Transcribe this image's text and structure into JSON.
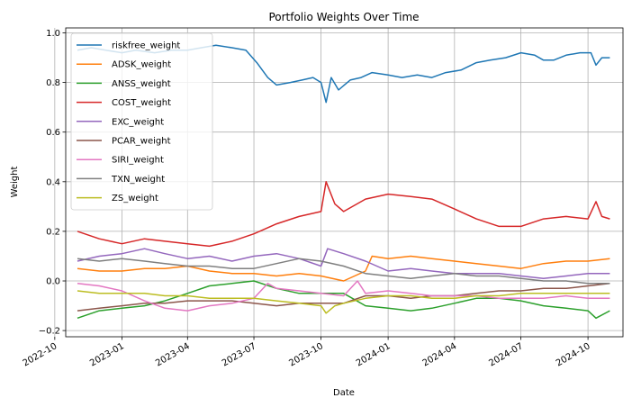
{
  "chart_data": {
    "type": "line",
    "title": "Portfolio Weights Over Time",
    "xlabel": "Date",
    "ylabel": "Weight",
    "xlim": [
      "2022-10-16",
      "2024-11-18"
    ],
    "ylim": [
      -0.225,
      1.02
    ],
    "grid": true,
    "legend_position": "top-left",
    "x_ticks": [
      "2022-10-01",
      "2023-01-01",
      "2023-04-01",
      "2023-07-01",
      "2023-10-01",
      "2024-01-01",
      "2024-04-01",
      "2024-07-01",
      "2024-10-01"
    ],
    "x_tick_labels": [
      "2022-10",
      "2023-01",
      "2023-04",
      "2023-07",
      "2023-10",
      "2024-01",
      "2024-04",
      "2024-07",
      "2024-10"
    ],
    "y_ticks": [
      -0.2,
      0.0,
      0.2,
      0.4,
      0.6,
      0.8,
      1.0
    ],
    "y_tick_labels": [
      "−0.2",
      "0.0",
      "0.2",
      "0.4",
      "0.6",
      "0.8",
      "1.0"
    ],
    "series": [
      {
        "name": "riskfree_weight",
        "color": "#1f77b4",
        "points": [
          [
            "2022-11-01",
            0.93
          ],
          [
            "2022-11-20",
            0.94
          ],
          [
            "2022-12-10",
            0.93
          ],
          [
            "2023-01-01",
            0.92
          ],
          [
            "2023-01-20",
            0.93
          ],
          [
            "2023-02-15",
            0.92
          ],
          [
            "2023-03-10",
            0.93
          ],
          [
            "2023-04-01",
            0.93
          ],
          [
            "2023-04-20",
            0.94
          ],
          [
            "2023-05-10",
            0.95
          ],
          [
            "2023-06-01",
            0.94
          ],
          [
            "2023-06-20",
            0.93
          ],
          [
            "2023-07-05",
            0.88
          ],
          [
            "2023-07-20",
            0.82
          ],
          [
            "2023-08-01",
            0.79
          ],
          [
            "2023-08-20",
            0.8
          ],
          [
            "2023-09-05",
            0.81
          ],
          [
            "2023-09-20",
            0.82
          ],
          [
            "2023-10-01",
            0.8
          ],
          [
            "2023-10-08",
            0.72
          ],
          [
            "2023-10-15",
            0.82
          ],
          [
            "2023-10-25",
            0.77
          ],
          [
            "2023-11-10",
            0.81
          ],
          [
            "2023-11-25",
            0.82
          ],
          [
            "2023-12-10",
            0.84
          ],
          [
            "2024-01-01",
            0.83
          ],
          [
            "2024-01-20",
            0.82
          ],
          [
            "2024-02-10",
            0.83
          ],
          [
            "2024-03-01",
            0.82
          ],
          [
            "2024-03-20",
            0.84
          ],
          [
            "2024-04-10",
            0.85
          ],
          [
            "2024-05-01",
            0.88
          ],
          [
            "2024-05-20",
            0.89
          ],
          [
            "2024-06-10",
            0.9
          ],
          [
            "2024-07-01",
            0.92
          ],
          [
            "2024-07-20",
            0.91
          ],
          [
            "2024-08-01",
            0.89
          ],
          [
            "2024-08-15",
            0.89
          ],
          [
            "2024-09-01",
            0.91
          ],
          [
            "2024-09-20",
            0.92
          ],
          [
            "2024-10-05",
            0.92
          ],
          [
            "2024-10-12",
            0.87
          ],
          [
            "2024-10-20",
            0.9
          ],
          [
            "2024-10-31",
            0.9
          ]
        ]
      },
      {
        "name": "ADSK_weight",
        "color": "#ff7f0e",
        "points": [
          [
            "2022-11-01",
            0.05
          ],
          [
            "2022-12-01",
            0.04
          ],
          [
            "2023-01-01",
            0.04
          ],
          [
            "2023-02-01",
            0.05
          ],
          [
            "2023-03-01",
            0.05
          ],
          [
            "2023-04-01",
            0.06
          ],
          [
            "2023-05-01",
            0.04
          ],
          [
            "2023-06-01",
            0.03
          ],
          [
            "2023-07-01",
            0.03
          ],
          [
            "2023-08-01",
            0.02
          ],
          [
            "2023-09-01",
            0.03
          ],
          [
            "2023-10-01",
            0.02
          ],
          [
            "2023-11-01",
            0.0
          ],
          [
            "2023-12-01",
            0.04
          ],
          [
            "2023-12-10",
            0.1
          ],
          [
            "2024-01-01",
            0.09
          ],
          [
            "2024-02-01",
            0.1
          ],
          [
            "2024-03-01",
            0.09
          ],
          [
            "2024-04-01",
            0.08
          ],
          [
            "2024-05-01",
            0.07
          ],
          [
            "2024-06-01",
            0.06
          ],
          [
            "2024-07-01",
            0.05
          ],
          [
            "2024-08-01",
            0.07
          ],
          [
            "2024-09-01",
            0.08
          ],
          [
            "2024-10-01",
            0.08
          ],
          [
            "2024-10-31",
            0.09
          ]
        ]
      },
      {
        "name": "ANSS_weight",
        "color": "#2ca02c",
        "points": [
          [
            "2022-11-01",
            -0.15
          ],
          [
            "2022-12-01",
            -0.12
          ],
          [
            "2023-01-01",
            -0.11
          ],
          [
            "2023-02-01",
            -0.1
          ],
          [
            "2023-03-01",
            -0.08
          ],
          [
            "2023-04-01",
            -0.05
          ],
          [
            "2023-05-01",
            -0.02
          ],
          [
            "2023-06-01",
            -0.01
          ],
          [
            "2023-07-01",
            0.0
          ],
          [
            "2023-08-01",
            -0.03
          ],
          [
            "2023-09-01",
            -0.05
          ],
          [
            "2023-10-01",
            -0.05
          ],
          [
            "2023-11-01",
            -0.05
          ],
          [
            "2023-12-01",
            -0.1
          ],
          [
            "2024-01-01",
            -0.11
          ],
          [
            "2024-02-01",
            -0.12
          ],
          [
            "2024-03-01",
            -0.11
          ],
          [
            "2024-04-01",
            -0.09
          ],
          [
            "2024-05-01",
            -0.07
          ],
          [
            "2024-06-01",
            -0.07
          ],
          [
            "2024-07-01",
            -0.08
          ],
          [
            "2024-08-01",
            -0.1
          ],
          [
            "2024-09-01",
            -0.11
          ],
          [
            "2024-10-01",
            -0.12
          ],
          [
            "2024-10-12",
            -0.15
          ],
          [
            "2024-10-31",
            -0.12
          ]
        ]
      },
      {
        "name": "COST_weight",
        "color": "#d62728",
        "points": [
          [
            "2022-11-01",
            0.2
          ],
          [
            "2022-12-01",
            0.17
          ],
          [
            "2023-01-01",
            0.15
          ],
          [
            "2023-02-01",
            0.17
          ],
          [
            "2023-03-01",
            0.16
          ],
          [
            "2023-04-01",
            0.15
          ],
          [
            "2023-05-01",
            0.14
          ],
          [
            "2023-06-01",
            0.16
          ],
          [
            "2023-07-01",
            0.19
          ],
          [
            "2023-08-01",
            0.23
          ],
          [
            "2023-09-01",
            0.26
          ],
          [
            "2023-10-01",
            0.28
          ],
          [
            "2023-10-08",
            0.4
          ],
          [
            "2023-10-20",
            0.31
          ],
          [
            "2023-11-01",
            0.28
          ],
          [
            "2023-12-01",
            0.33
          ],
          [
            "2024-01-01",
            0.35
          ],
          [
            "2024-02-01",
            0.34
          ],
          [
            "2024-03-01",
            0.33
          ],
          [
            "2024-04-01",
            0.29
          ],
          [
            "2024-05-01",
            0.25
          ],
          [
            "2024-06-01",
            0.22
          ],
          [
            "2024-07-01",
            0.22
          ],
          [
            "2024-08-01",
            0.25
          ],
          [
            "2024-09-01",
            0.26
          ],
          [
            "2024-10-01",
            0.25
          ],
          [
            "2024-10-12",
            0.32
          ],
          [
            "2024-10-20",
            0.26
          ],
          [
            "2024-10-31",
            0.25
          ]
        ]
      },
      {
        "name": "EXC_weight",
        "color": "#9467bd",
        "points": [
          [
            "2022-11-01",
            0.08
          ],
          [
            "2022-12-01",
            0.1
          ],
          [
            "2023-01-01",
            0.11
          ],
          [
            "2023-02-01",
            0.13
          ],
          [
            "2023-03-01",
            0.11
          ],
          [
            "2023-04-01",
            0.09
          ],
          [
            "2023-05-01",
            0.1
          ],
          [
            "2023-06-01",
            0.08
          ],
          [
            "2023-07-01",
            0.1
          ],
          [
            "2023-08-01",
            0.11
          ],
          [
            "2023-09-01",
            0.09
          ],
          [
            "2023-10-01",
            0.06
          ],
          [
            "2023-10-10",
            0.13
          ],
          [
            "2023-11-01",
            0.11
          ],
          [
            "2023-12-01",
            0.08
          ],
          [
            "2024-01-01",
            0.04
          ],
          [
            "2024-02-01",
            0.05
          ],
          [
            "2024-03-01",
            0.04
          ],
          [
            "2024-04-01",
            0.03
          ],
          [
            "2024-05-01",
            0.03
          ],
          [
            "2024-06-01",
            0.03
          ],
          [
            "2024-07-01",
            0.02
          ],
          [
            "2024-08-01",
            0.01
          ],
          [
            "2024-09-01",
            0.02
          ],
          [
            "2024-10-01",
            0.03
          ],
          [
            "2024-10-31",
            0.03
          ]
        ]
      },
      {
        "name": "PCAR_weight",
        "color": "#8c564b",
        "points": [
          [
            "2022-11-01",
            -0.12
          ],
          [
            "2022-12-01",
            -0.11
          ],
          [
            "2023-01-01",
            -0.1
          ],
          [
            "2023-02-01",
            -0.09
          ],
          [
            "2023-03-01",
            -0.09
          ],
          [
            "2023-04-01",
            -0.08
          ],
          [
            "2023-05-01",
            -0.08
          ],
          [
            "2023-06-01",
            -0.08
          ],
          [
            "2023-07-01",
            -0.09
          ],
          [
            "2023-08-01",
            -0.1
          ],
          [
            "2023-09-01",
            -0.09
          ],
          [
            "2023-10-01",
            -0.09
          ],
          [
            "2023-11-01",
            -0.09
          ],
          [
            "2023-12-01",
            -0.06
          ],
          [
            "2024-01-01",
            -0.06
          ],
          [
            "2024-02-01",
            -0.07
          ],
          [
            "2024-03-01",
            -0.06
          ],
          [
            "2024-04-01",
            -0.06
          ],
          [
            "2024-05-01",
            -0.05
          ],
          [
            "2024-06-01",
            -0.04
          ],
          [
            "2024-07-01",
            -0.04
          ],
          [
            "2024-08-01",
            -0.03
          ],
          [
            "2024-09-01",
            -0.03
          ],
          [
            "2024-10-01",
            -0.02
          ],
          [
            "2024-10-31",
            -0.01
          ]
        ]
      },
      {
        "name": "SIRI_weight",
        "color": "#e377c2",
        "points": [
          [
            "2022-11-01",
            -0.01
          ],
          [
            "2022-12-01",
            -0.02
          ],
          [
            "2023-01-01",
            -0.04
          ],
          [
            "2023-02-01",
            -0.08
          ],
          [
            "2023-03-01",
            -0.11
          ],
          [
            "2023-04-01",
            -0.12
          ],
          [
            "2023-05-01",
            -0.1
          ],
          [
            "2023-06-01",
            -0.09
          ],
          [
            "2023-07-01",
            -0.07
          ],
          [
            "2023-07-20",
            -0.01
          ],
          [
            "2023-08-01",
            -0.03
          ],
          [
            "2023-09-01",
            -0.04
          ],
          [
            "2023-10-01",
            -0.05
          ],
          [
            "2023-11-01",
            -0.06
          ],
          [
            "2023-11-20",
            0.0
          ],
          [
            "2023-12-01",
            -0.05
          ],
          [
            "2024-01-01",
            -0.04
          ],
          [
            "2024-02-01",
            -0.05
          ],
          [
            "2024-03-01",
            -0.06
          ],
          [
            "2024-04-01",
            -0.06
          ],
          [
            "2024-05-01",
            -0.06
          ],
          [
            "2024-06-01",
            -0.07
          ],
          [
            "2024-07-01",
            -0.07
          ],
          [
            "2024-08-01",
            -0.07
          ],
          [
            "2024-09-01",
            -0.06
          ],
          [
            "2024-10-01",
            -0.07
          ],
          [
            "2024-10-31",
            -0.07
          ]
        ]
      },
      {
        "name": "TXN_weight",
        "color": "#7f7f7f",
        "points": [
          [
            "2022-11-01",
            0.09
          ],
          [
            "2022-12-01",
            0.08
          ],
          [
            "2023-01-01",
            0.09
          ],
          [
            "2023-02-01",
            0.08
          ],
          [
            "2023-03-01",
            0.07
          ],
          [
            "2023-04-01",
            0.06
          ],
          [
            "2023-05-01",
            0.06
          ],
          [
            "2023-06-01",
            0.05
          ],
          [
            "2023-07-01",
            0.05
          ],
          [
            "2023-08-01",
            0.07
          ],
          [
            "2023-09-01",
            0.09
          ],
          [
            "2023-10-01",
            0.08
          ],
          [
            "2023-11-01",
            0.06
          ],
          [
            "2023-12-01",
            0.03
          ],
          [
            "2024-01-01",
            0.02
          ],
          [
            "2024-02-01",
            0.01
          ],
          [
            "2024-03-01",
            0.02
          ],
          [
            "2024-04-01",
            0.03
          ],
          [
            "2024-05-01",
            0.02
          ],
          [
            "2024-06-01",
            0.02
          ],
          [
            "2024-07-01",
            0.01
          ],
          [
            "2024-08-01",
            0.0
          ],
          [
            "2024-09-01",
            0.0
          ],
          [
            "2024-10-01",
            -0.01
          ],
          [
            "2024-10-31",
            -0.01
          ]
        ]
      },
      {
        "name": "ZS_weight",
        "color": "#bcbd22",
        "points": [
          [
            "2022-11-01",
            -0.04
          ],
          [
            "2022-12-01",
            -0.05
          ],
          [
            "2023-01-01",
            -0.05
          ],
          [
            "2023-02-01",
            -0.05
          ],
          [
            "2023-03-01",
            -0.06
          ],
          [
            "2023-04-01",
            -0.06
          ],
          [
            "2023-05-01",
            -0.07
          ],
          [
            "2023-06-01",
            -0.07
          ],
          [
            "2023-07-01",
            -0.07
          ],
          [
            "2023-08-01",
            -0.08
          ],
          [
            "2023-09-01",
            -0.09
          ],
          [
            "2023-10-01",
            -0.1
          ],
          [
            "2023-10-08",
            -0.13
          ],
          [
            "2023-10-20",
            -0.1
          ],
          [
            "2023-11-01",
            -0.09
          ],
          [
            "2023-12-01",
            -0.07
          ],
          [
            "2024-01-01",
            -0.06
          ],
          [
            "2024-02-01",
            -0.06
          ],
          [
            "2024-03-01",
            -0.07
          ],
          [
            "2024-04-01",
            -0.07
          ],
          [
            "2024-05-01",
            -0.06
          ],
          [
            "2024-06-01",
            -0.06
          ],
          [
            "2024-07-01",
            -0.05
          ],
          [
            "2024-08-01",
            -0.05
          ],
          [
            "2024-09-01",
            -0.05
          ],
          [
            "2024-10-01",
            -0.05
          ],
          [
            "2024-10-31",
            -0.05
          ]
        ]
      }
    ]
  }
}
